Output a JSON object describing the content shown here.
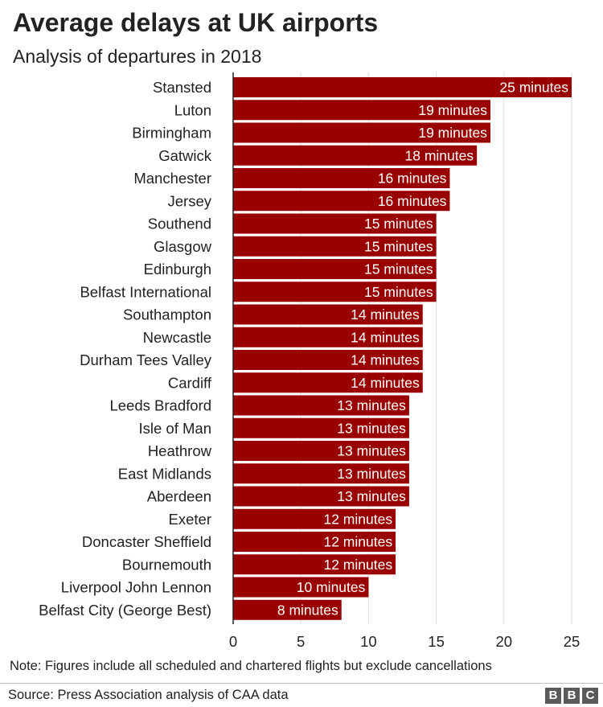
{
  "header": {
    "title": "Average delays at UK airports",
    "subtitle": "Analysis of departures in 2018"
  },
  "footer": {
    "note": "Note: Figures include all scheduled and chartered flights but exclude cancellations",
    "source": "Source: Press Association analysis of CAA data",
    "logo_letters": [
      "B",
      "B",
      "C"
    ]
  },
  "colors": {
    "bar": "#990000",
    "grid": "#dddddd",
    "axis": "#222222"
  },
  "chart_data": {
    "type": "bar",
    "orientation": "horizontal",
    "title": "Average delays at UK airports",
    "subtitle": "Analysis of departures in 2018",
    "categories": [
      "Stansted",
      "Luton",
      "Birmingham",
      "Gatwick",
      "Manchester",
      "Jersey",
      "Southend",
      "Glasgow",
      "Edinburgh",
      "Belfast International",
      "Southampton",
      "Newcastle",
      "Durham Tees Valley",
      "Cardiff",
      "Leeds Bradford",
      "Isle of Man",
      "Heathrow",
      "East Midlands",
      "Aberdeen",
      "Exeter",
      "Doncaster Sheffield",
      "Bournemouth",
      "Liverpool John Lennon",
      "Belfast City (George Best)"
    ],
    "values": [
      25,
      19,
      19,
      18,
      16,
      16,
      15,
      15,
      15,
      15,
      14,
      14,
      14,
      14,
      13,
      13,
      13,
      13,
      13,
      12,
      12,
      12,
      10,
      8
    ],
    "data_labels": [
      "25 minutes",
      "19 minutes",
      "19 minutes",
      "18 minutes",
      "16 minutes",
      "16 minutes",
      "15 minutes",
      "15 minutes",
      "15 minutes",
      "15 minutes",
      "14 minutes",
      "14 minutes",
      "14 minutes",
      "14 minutes",
      "13 minutes",
      "13 minutes",
      "13 minutes",
      "13 minutes",
      "13 minutes",
      "12 minutes",
      "12 minutes",
      "12 minutes",
      "10 minutes",
      "8 minutes"
    ],
    "xlim": [
      0,
      25
    ],
    "xticks": [
      0,
      5,
      10,
      15,
      20,
      25
    ],
    "xtick_labels": [
      "0",
      "5",
      "10",
      "15",
      "20",
      "25"
    ],
    "xlabel": "",
    "ylabel": "",
    "grid": "vertical"
  }
}
